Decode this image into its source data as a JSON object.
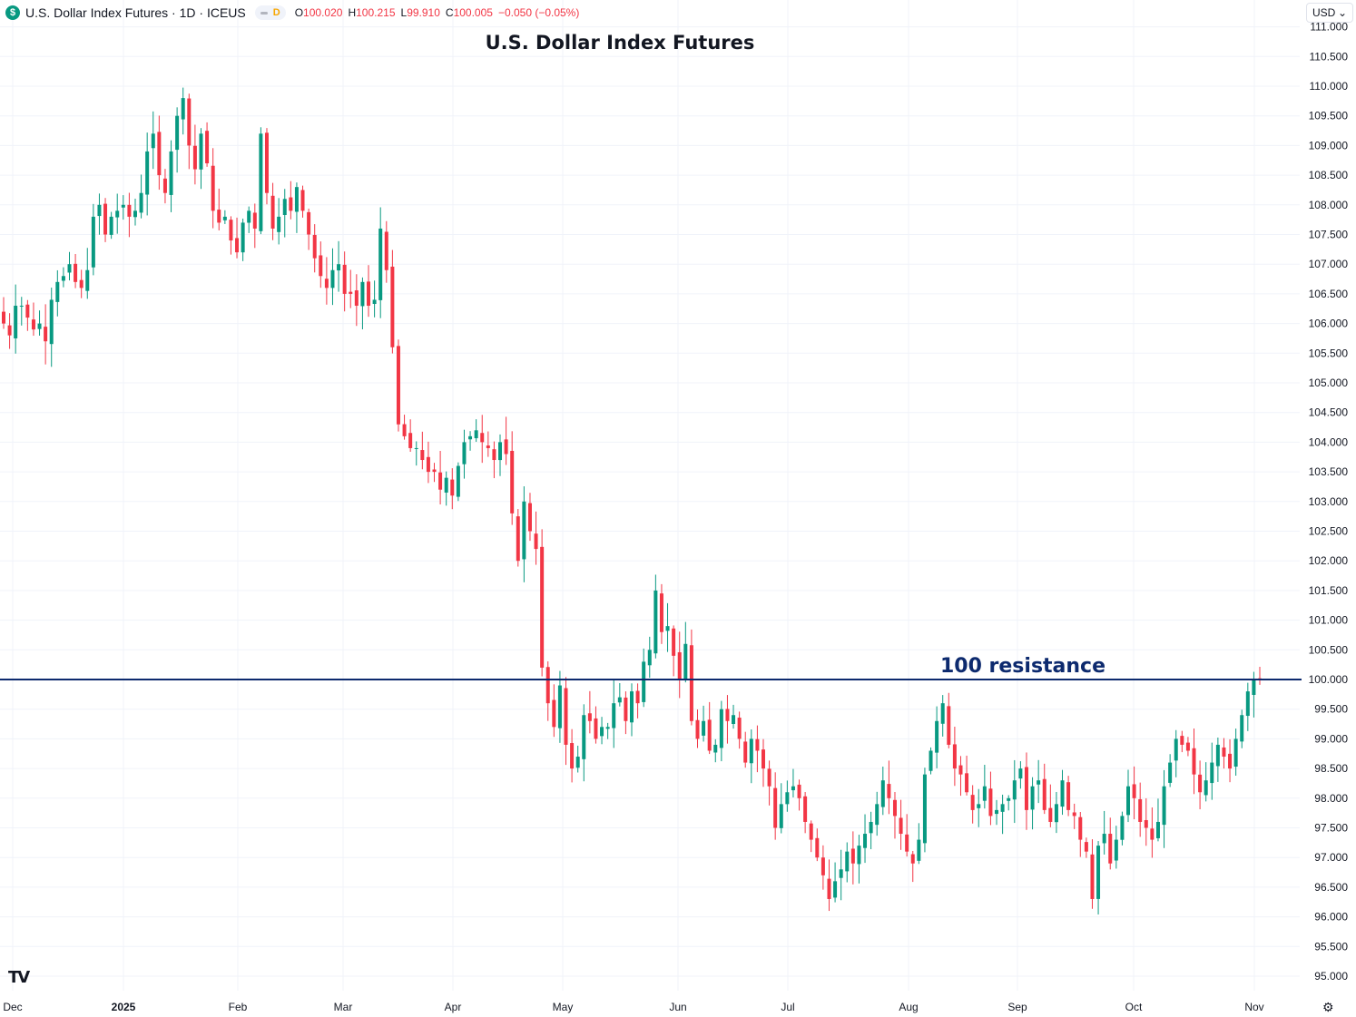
{
  "header": {
    "symbol_icon": "dollar-icon",
    "symbol_glyph": "$",
    "title": "U.S. Dollar Index Futures · 1D · ICEUS",
    "interval_badge": "D",
    "open_label": "O",
    "open": "100.020",
    "high_label": "H",
    "high": "100.215",
    "low_label": "L",
    "low": "99.910",
    "close_label": "C",
    "close": "100.005",
    "change": "−0.050 (−0.05%)"
  },
  "currency": {
    "label": "USD",
    "icon": "chevron-down-icon"
  },
  "colors": {
    "up": "#089981",
    "down": "#f23645",
    "resistance": "#0d2a6e",
    "grid": "#f0f3fa",
    "text": "#131722"
  },
  "chart_data": {
    "type": "candlestick",
    "title": "U.S. Dollar Index Futures",
    "ylim": [
      94.8,
      111.1
    ],
    "y_ticks": [
      "95.000",
      "95.500",
      "96.000",
      "96.500",
      "97.000",
      "97.500",
      "98.000",
      "98.500",
      "99.000",
      "99.500",
      "100.000",
      "100.500",
      "101.000",
      "101.500",
      "102.000",
      "102.500",
      "103.000",
      "103.500",
      "104.000",
      "104.500",
      "105.000",
      "105.500",
      "106.000",
      "106.500",
      "107.000",
      "107.500",
      "108.000",
      "108.500",
      "109.000",
      "109.500",
      "110.000",
      "110.500",
      "111.000"
    ],
    "x_ticks": [
      "Dec",
      "2025",
      "Feb",
      "Mar",
      "Apr",
      "May",
      "Jun",
      "Jul",
      "Aug",
      "Sep",
      "Oct",
      "Nov"
    ],
    "resistance": {
      "value": 100.0,
      "label": "100 resistance"
    },
    "date_range": [
      "2024-11-29",
      "2025-11-05"
    ],
    "closes": [
      106.0,
      105.8,
      106.3,
      106.3,
      106.1,
      105.9,
      106.0,
      105.7,
      106.4,
      106.7,
      106.8,
      107.0,
      106.7,
      106.6,
      106.9,
      107.8,
      108.0,
      107.5,
      107.8,
      107.9,
      108.0,
      107.8,
      107.9,
      108.2,
      108.9,
      109.2,
      108.5,
      108.2,
      108.9,
      109.5,
      109.8,
      109.0,
      108.6,
      109.2,
      108.7,
      107.9,
      107.7,
      107.8,
      107.4,
      107.2,
      107.7,
      107.9,
      107.6,
      109.2,
      108.2,
      107.6,
      107.8,
      108.1,
      107.9,
      108.3,
      107.9,
      107.5,
      107.1,
      106.8,
      106.6,
      106.9,
      107.0,
      106.5,
      106.5,
      106.3,
      106.7,
      106.3,
      106.4,
      107.6,
      106.9,
      105.6,
      104.3,
      104.1,
      103.9,
      103.9,
      103.7,
      103.5,
      103.5,
      103.2,
      103.4,
      103.1,
      103.6,
      104.0,
      104.1,
      104.2,
      104.0,
      103.9,
      103.7,
      104.0,
      103.8,
      102.8,
      102.0,
      103.0,
      102.5,
      102.2,
      100.2,
      99.6,
      99.2,
      99.9,
      98.9,
      98.5,
      98.7,
      99.4,
      99.3,
      99.0,
      99.2,
      99.2,
      99.6,
      99.7,
      99.3,
      99.8,
      99.6,
      100.3,
      100.5,
      101.5,
      100.8,
      100.9,
      100.4,
      100.0,
      100.6,
      99.3,
      99.0,
      99.3,
      98.8,
      98.9,
      99.5,
      99.3,
      99.4,
      99.0,
      98.6,
      99.0,
      98.8,
      98.5,
      98.2,
      97.5,
      97.9,
      98.1,
      98.2,
      98.0,
      97.6,
      97.3,
      97.0,
      96.7,
      96.3,
      96.6,
      96.8,
      97.1,
      96.9,
      97.2,
      97.4,
      97.6,
      97.9,
      98.3,
      98.0,
      97.7,
      97.4,
      97.1,
      96.9,
      97.3,
      98.4,
      98.8,
      99.3,
      99.6,
      98.9,
      98.5,
      98.4,
      98.1,
      97.8,
      97.9,
      98.2,
      97.7,
      97.8,
      97.9,
      98.0,
      98.3,
      98.5,
      97.8,
      98.2,
      98.3,
      97.8,
      97.6,
      97.9,
      98.3,
      97.8,
      97.7,
      97.3,
      97.1,
      96.3,
      97.2,
      97.4,
      96.9,
      97.3,
      97.7,
      98.2,
      98.0,
      97.6,
      97.5,
      97.3,
      97.6,
      98.2,
      98.6,
      99.0,
      98.9,
      98.8,
      98.4,
      98.1,
      98.3,
      98.6,
      98.9,
      98.7,
      98.5,
      99.0,
      99.4,
      99.8,
      100.0,
      100.0
    ],
    "ohlc_last": {
      "open": 100.02,
      "high": 100.215,
      "low": 99.91,
      "close": 100.005
    }
  }
}
